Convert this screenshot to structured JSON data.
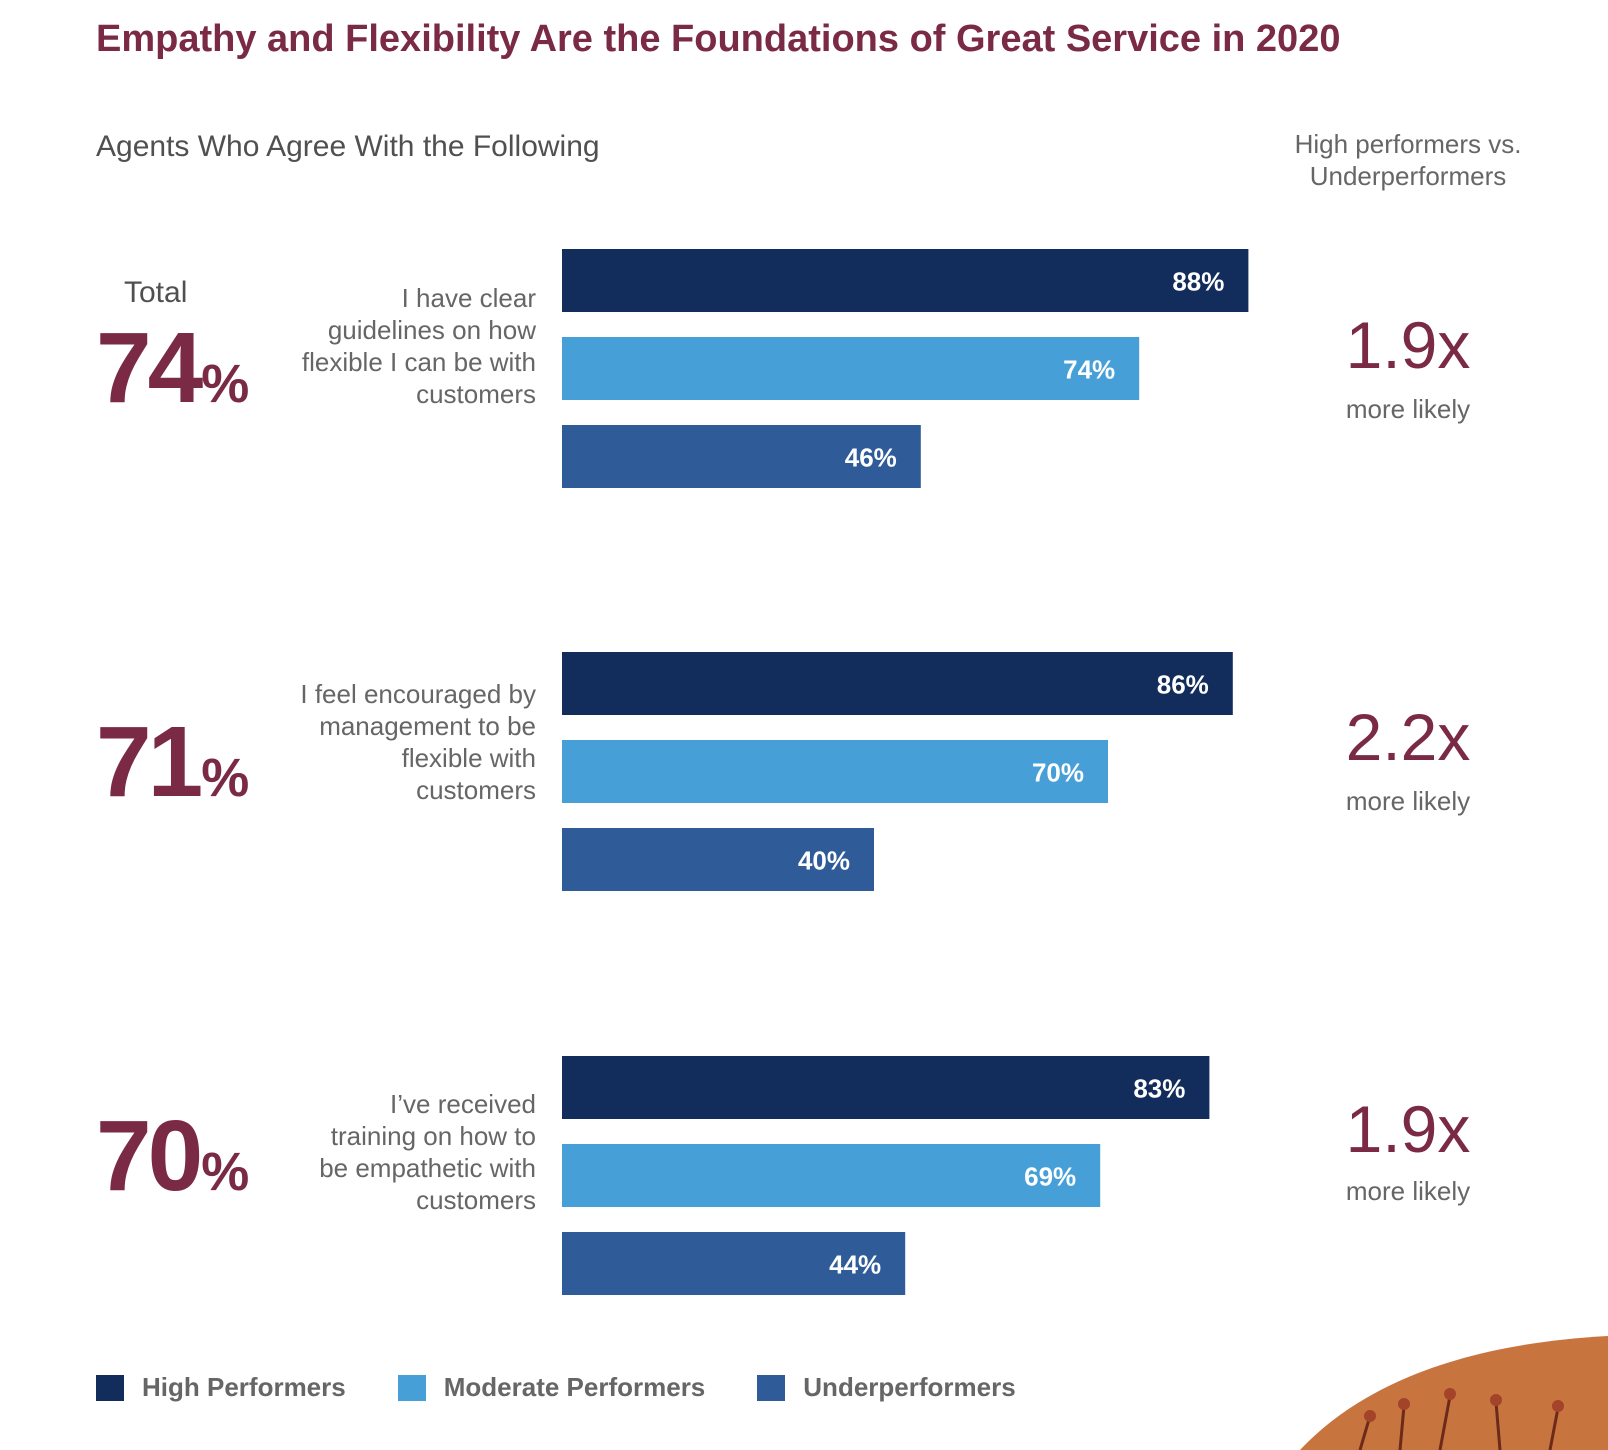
{
  "header": {
    "title": "Empathy and Flexibility Are the Foundations of Great Service in 2020",
    "subtitle": "Agents Who Agree With the Following",
    "comparison_heading": "High performers vs. Underperformers",
    "total_label": "Total"
  },
  "rows": [
    {
      "total": {
        "num": "74",
        "sym": "%"
      },
      "statement": "I have clear guidelines on how flexible I can be with customers",
      "ratio": "1.9x",
      "ratio_sub": "more likely"
    },
    {
      "total": {
        "num": "71",
        "sym": "%"
      },
      "statement": "I feel encouraged by management to be flexible with customers",
      "ratio": "2.2x",
      "ratio_sub": "more likely"
    },
    {
      "total": {
        "num": "70",
        "sym": "%"
      },
      "statement": "I’ve received training on how to be empathetic with customers",
      "ratio": "1.9x",
      "ratio_sub": "more likely"
    }
  ],
  "chart_data": {
    "type": "bar",
    "orientation": "horizontal",
    "title": "Empathy and Flexibility Are the Foundations of Great Service in 2020",
    "subtitle": "Agents Who Agree With the Following",
    "categories": [
      "I have clear guidelines on how flexible I can be with customers",
      "I feel encouraged by management to be flexible with customers",
      "I’ve received training on how to be empathetic with customers"
    ],
    "series": [
      {
        "name": "High Performers",
        "values": [
          88,
          86,
          83
        ],
        "labels": [
          "88%",
          "86%",
          "83%"
        ],
        "color": "#122d5c"
      },
      {
        "name": "Moderate Performers",
        "values": [
          74,
          70,
          69
        ],
        "labels": [
          "74%",
          "70%",
          "69%"
        ],
        "color": "#479fd7"
      },
      {
        "name": "Underperformers",
        "values": [
          46,
          40,
          44
        ],
        "labels": [
          "46%",
          "40%",
          "44%"
        ],
        "color": "#2f5b98"
      }
    ],
    "xlim": [
      0,
      100
    ],
    "grid": false,
    "legend_position": "bottom-left"
  }
}
